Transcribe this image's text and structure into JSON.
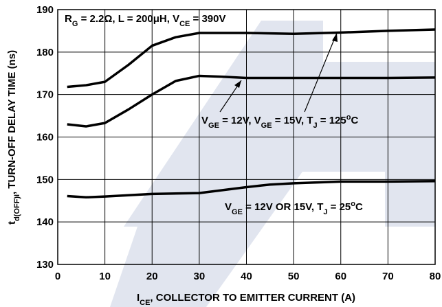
{
  "chart_data": {
    "type": "line",
    "annotations": [
      [
        {
          "text": "R"
        },
        {
          "text": "G",
          "sub": true
        },
        {
          "text": " = 2.2Ω, L = 200μH, V"
        },
        {
          "text": "CE",
          "sub": true
        },
        {
          "text": " = 390V"
        }
      ],
      [
        {
          "text": "V"
        },
        {
          "text": "GE",
          "sub": true
        },
        {
          "text": " = 12V, V"
        },
        {
          "text": "GE",
          "sub": true
        },
        {
          "text": " = 15V, T"
        },
        {
          "text": "J",
          "sub": true
        },
        {
          "text": " = 125"
        },
        {
          "text": "o",
          "sup": true
        },
        {
          "text": "C"
        }
      ],
      [
        {
          "text": "V"
        },
        {
          "text": "GE",
          "sub": true
        },
        {
          "text": " = 12V OR 15V, T"
        },
        {
          "text": "J",
          "sub": true
        },
        {
          "text": " = 25"
        },
        {
          "text": "o",
          "sup": true
        },
        {
          "text": "C"
        }
      ]
    ],
    "x_label": [
      {
        "text": "I"
      },
      {
        "text": "CE",
        "sub": true
      },
      {
        "text": ", COLLECTOR TO EMITTER CURRENT (A)"
      }
    ],
    "y_label": [
      {
        "text": "t"
      },
      {
        "text": "d(OFF)I",
        "sub": true
      },
      {
        "text": ", TURN-OFF DELAY TIME (ns)"
      }
    ],
    "xlim": [
      0,
      80
    ],
    "xticks": [
      0,
      10,
      20,
      30,
      40,
      50,
      60,
      70,
      80
    ],
    "ylim": [
      130,
      190
    ],
    "yticks": [
      130,
      140,
      150,
      160,
      170,
      180,
      190
    ],
    "grid": true,
    "series": [
      {
        "color": "#000000",
        "x": [
          2,
          6,
          10,
          15,
          20,
          25,
          30,
          35,
          40,
          50,
          60,
          70,
          80
        ],
        "values": [
          171.8,
          172.2,
          173,
          177,
          181.5,
          183.5,
          184.5,
          184.5,
          184.5,
          184.3,
          184.6,
          185,
          185.3
        ]
      },
      {
        "color": "#000000",
        "x": [
          2,
          6,
          10,
          15,
          20,
          25,
          30,
          35,
          40,
          50,
          60,
          70,
          80
        ],
        "values": [
          163,
          162.5,
          163.3,
          166.5,
          170,
          173.2,
          174.4,
          174.2,
          173.9,
          173.9,
          173.9,
          173.9,
          174
        ]
      },
      {
        "color": "#000000",
        "x": [
          2,
          6,
          10,
          20,
          30,
          40,
          45,
          50,
          60,
          70,
          80
        ],
        "values": [
          146.1,
          145.8,
          146,
          146.6,
          146.8,
          148.2,
          148.8,
          149.1,
          149.5,
          149.5,
          149.6
        ]
      }
    ]
  }
}
